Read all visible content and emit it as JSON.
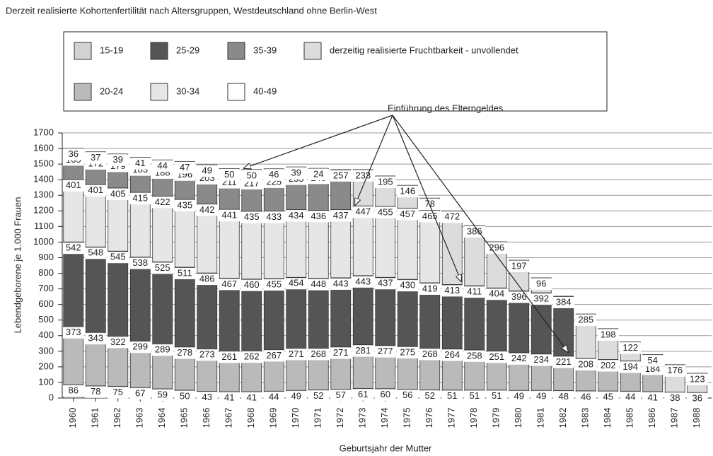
{
  "chart_data": {
    "type": "stacked-bar",
    "title": "Derzeit realisierte Kohortenfertilität nach Altersgruppen, Westdeutschland ohne Berlin-West",
    "y_label": "Lebendgeborene je 1.000 Frauen",
    "x_label": "Geburtsjahr der Mutter",
    "annotation": "Einführung des Elterngeldes",
    "categories": [
      "1960",
      "1961",
      "1962",
      "1963",
      "1964",
      "1965",
      "1966",
      "1967",
      "1968",
      "1969",
      "1970",
      "1971",
      "1972",
      "1973",
      "1974",
      "1975",
      "1976",
      "1977",
      "1978",
      "1979",
      "1980",
      "1981",
      "1982",
      "1983",
      "1984",
      "1985",
      "1986",
      "1987",
      "1988"
    ],
    "ylim": [
      0,
      1700
    ],
    "yticks": [
      0,
      100,
      200,
      300,
      400,
      500,
      600,
      700,
      800,
      900,
      1000,
      1100,
      1200,
      1300,
      1400,
      1500,
      1600,
      1700
    ],
    "grid": true,
    "series": [
      {
        "name": "15-19",
        "color": "#d2d2d2",
        "values": [
          86,
          78,
          75,
          67,
          59,
          50,
          43,
          41,
          41,
          44,
          49,
          52,
          57,
          61,
          60,
          56,
          52,
          51,
          51,
          51,
          49,
          49,
          48,
          46,
          45,
          44,
          41,
          38,
          36
        ]
      },
      {
        "name": "20-24",
        "color": "#bababa",
        "values": [
          373,
          343,
          322,
          299,
          289,
          278,
          273,
          261,
          262,
          267,
          271,
          268,
          271,
          281,
          277,
          275,
          268,
          264,
          258,
          251,
          242,
          234,
          221,
          208,
          202,
          194,
          184,
          null,
          null
        ]
      },
      {
        "name": "25-29",
        "color": "#555555",
        "values": [
          542,
          548,
          545,
          538,
          525,
          511,
          486,
          467,
          460,
          455,
          454,
          448,
          443,
          443,
          437,
          430,
          419,
          413,
          411,
          404,
          396,
          392,
          384,
          null,
          null,
          null,
          null,
          null,
          null
        ]
      },
      {
        "name": "30-34",
        "color": "#e6e6e6",
        "values": [
          401,
          401,
          405,
          415,
          422,
          435,
          442,
          441,
          435,
          433,
          434,
          436,
          437,
          447,
          455,
          457,
          465,
          null,
          null,
          null,
          null,
          null,
          null,
          null,
          null,
          null,
          null,
          null,
          null
        ]
      },
      {
        "name": "35-39",
        "color": "#8a8a8a",
        "values": [
          165,
          172,
          179,
          183,
          188,
          196,
          203,
          211,
          217,
          225,
          235,
          245,
          257,
          null,
          null,
          null,
          null,
          null,
          null,
          null,
          null,
          null,
          null,
          null,
          null,
          null,
          null,
          null,
          null
        ]
      },
      {
        "name": "40-49",
        "color": "#ffffff",
        "values": [
          36,
          37,
          39,
          41,
          44,
          47,
          49,
          50,
          50,
          46,
          39,
          24,
          null,
          null,
          null,
          null,
          null,
          null,
          null,
          null,
          null,
          null,
          null,
          null,
          null,
          null,
          null,
          null,
          null
        ]
      },
      {
        "name": "derzeitig realisierte Fruchtbarkeit - unvollendet",
        "color": "#dcdcdc",
        "values": [
          null,
          null,
          null,
          null,
          null,
          null,
          null,
          null,
          null,
          null,
          null,
          null,
          null,
          233,
          195,
          146,
          78,
          472,
          386,
          296,
          197,
          96,
          null,
          285,
          198,
          122,
          54,
          176,
          123
        ]
      }
    ]
  }
}
